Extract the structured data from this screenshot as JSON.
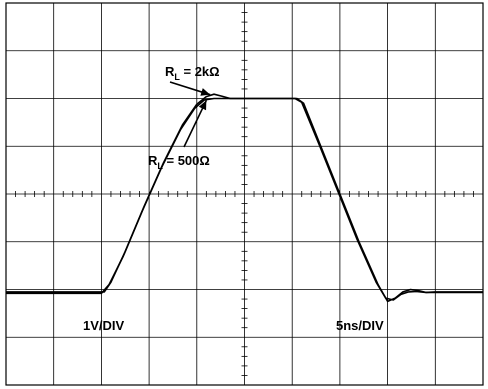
{
  "chart_data": {
    "type": "line",
    "xlim": [
      0,
      50
    ],
    "ylim": [
      -4,
      4
    ],
    "grid": true,
    "divisions": {
      "x": 10,
      "y": 8
    },
    "scale_labels": {
      "vertical": "1V/DIV",
      "horizontal": "5ns/DIV"
    },
    "series": [
      {
        "name": "R_L = 2kΩ",
        "x": [
          0,
          10.0,
          10.5,
          11.5,
          13,
          15,
          17,
          19,
          21,
          23,
          25,
          26,
          27,
          28,
          29,
          30.5,
          32,
          34,
          36,
          38,
          40,
          42,
          45,
          48,
          50
        ],
        "y": [
          -2.05,
          -2.05,
          -1.95,
          -1.5,
          -0.8,
          0.0,
          0.9,
          1.6,
          2.0,
          2.07,
          2.0,
          2.0,
          2.0,
          2.0,
          2.0,
          2.0,
          2.0,
          2.0,
          2.0,
          2.0,
          2.0,
          2.0,
          2.0,
          2.0,
          2.0
        ],
        "points": [
          [
            0,
            -2.05
          ],
          [
            10.2,
            -2.05
          ],
          [
            10.8,
            -1.9
          ],
          [
            12,
            -1.4
          ],
          [
            14,
            -0.5
          ],
          [
            16,
            0.4
          ],
          [
            18,
            1.2
          ],
          [
            19.5,
            1.7
          ],
          [
            20.8,
            1.98
          ],
          [
            21.8,
            2.07
          ],
          [
            22.8,
            2.04
          ],
          [
            24,
            2.0
          ],
          [
            30,
            2.0
          ],
          [
            38,
            2.0
          ],
          [
            44,
            2.0
          ],
          [
            50,
            2.0
          ]
        ]
      }
    ],
    "waveforms": [
      {
        "name_parts": {
          "main": "R",
          "sub": "L",
          "rest": " = 2kΩ"
        },
        "points": [
          [
            0,
            -2.05
          ],
          [
            10.3,
            -2.05
          ],
          [
            11.0,
            -1.85
          ],
          [
            12.5,
            -1.2
          ],
          [
            14.5,
            -0.25
          ],
          [
            16.5,
            0.65
          ],
          [
            18.5,
            1.45
          ],
          [
            20.0,
            1.88
          ],
          [
            21.0,
            2.04
          ],
          [
            21.8,
            2.09
          ],
          [
            22.6,
            2.05
          ],
          [
            23.5,
            2.0
          ],
          [
            30.5,
            2.0
          ],
          [
            31.2,
            1.9
          ],
          [
            33,
            1.0
          ],
          [
            35,
            0.0
          ],
          [
            37,
            -1.0
          ],
          [
            39,
            -1.9
          ],
          [
            40,
            -2.25
          ],
          [
            40.8,
            -2.18
          ],
          [
            41.6,
            -2.05
          ],
          [
            42.4,
            -2.0
          ],
          [
            43.2,
            -2.02
          ],
          [
            44,
            -2.06
          ],
          [
            45,
            -2.05
          ],
          [
            50,
            -2.05
          ]
        ]
      },
      {
        "name_parts": {
          "main": "R",
          "sub": "L",
          "rest": " = 500Ω"
        },
        "points": [
          [
            0,
            -2.08
          ],
          [
            10.0,
            -2.08
          ],
          [
            10.8,
            -1.9
          ],
          [
            12.3,
            -1.3
          ],
          [
            14.3,
            -0.35
          ],
          [
            16.3,
            0.55
          ],
          [
            18.3,
            1.35
          ],
          [
            19.8,
            1.8
          ],
          [
            20.8,
            1.97
          ],
          [
            21.8,
            2.0
          ],
          [
            23.0,
            2.0
          ],
          [
            30.3,
            2.0
          ],
          [
            31.0,
            1.92
          ],
          [
            32.8,
            1.05
          ],
          [
            34.8,
            0.05
          ],
          [
            36.8,
            -0.95
          ],
          [
            38.8,
            -1.85
          ],
          [
            39.8,
            -2.18
          ],
          [
            40.6,
            -2.22
          ],
          [
            41.4,
            -2.1
          ],
          [
            42.2,
            -2.05
          ],
          [
            43,
            -2.04
          ],
          [
            44,
            -2.06
          ],
          [
            45,
            -2.06
          ],
          [
            50,
            -2.06
          ]
        ]
      }
    ],
    "annotations": [
      {
        "id": "ann-2k",
        "main": "R",
        "sub": "L",
        "rest": " = 2kΩ",
        "arrow_to": [
          21.4,
          2.08
        ]
      },
      {
        "id": "ann-500",
        "main": "R",
        "sub": "L",
        "rest": " = 500Ω",
        "arrow_to": [
          21.0,
          1.96
        ]
      }
    ],
    "colors": {
      "trace": "#000000",
      "grid": "#000000",
      "background": "#ffffff"
    }
  }
}
